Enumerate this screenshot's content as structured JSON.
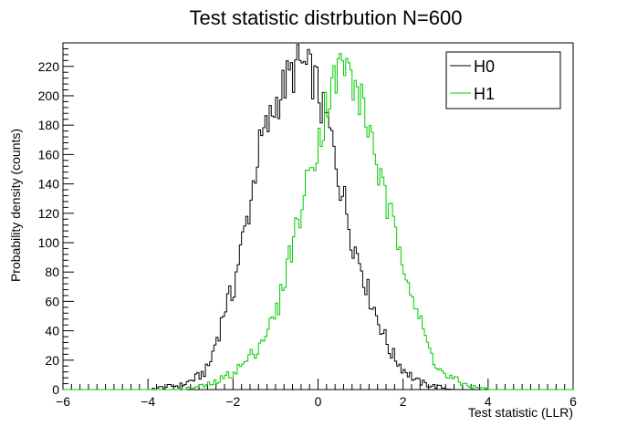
{
  "chart_data": {
    "type": "histogram",
    "title": "Test statistic distrbution N=600",
    "xlabel": "Test statistic (LLR)",
    "ylabel": "Probability density (counts)",
    "xlim": [
      -6,
      6
    ],
    "ylim": [
      0,
      236
    ],
    "xticks": [
      -6,
      -4,
      -2,
      0,
      2,
      4,
      6
    ],
    "yticks": [
      0,
      20,
      40,
      60,
      80,
      100,
      120,
      140,
      160,
      180,
      200,
      220
    ],
    "grid": false,
    "legend_position": "top-right",
    "bin_width": 0.05,
    "series": [
      {
        "name": "H0",
        "color": "#000000",
        "points": [
          [
            -6.0,
            0
          ],
          [
            -4.5,
            0
          ],
          [
            -4.0,
            0
          ],
          [
            -3.8,
            1
          ],
          [
            -3.5,
            2
          ],
          [
            -3.2,
            3
          ],
          [
            -3.0,
            6
          ],
          [
            -2.8,
            9
          ],
          [
            -2.6,
            14
          ],
          [
            -2.5,
            22
          ],
          [
            -2.4,
            34
          ],
          [
            -2.3,
            42
          ],
          [
            -2.2,
            56
          ],
          [
            -2.0,
            66
          ],
          [
            -1.9,
            84
          ],
          [
            -1.8,
            98
          ],
          [
            -1.7,
            112
          ],
          [
            -1.6,
            125
          ],
          [
            -1.5,
            145
          ],
          [
            -1.4,
            162
          ],
          [
            -1.3,
            172
          ],
          [
            -1.2,
            178
          ],
          [
            -1.1,
            185
          ],
          [
            -1.0,
            195
          ],
          [
            -0.9,
            200
          ],
          [
            -0.8,
            207
          ],
          [
            -0.7,
            212
          ],
          [
            -0.6,
            215
          ],
          [
            -0.5,
            220
          ],
          [
            -0.4,
            222
          ],
          [
            -0.3,
            218
          ],
          [
            -0.2,
            216
          ],
          [
            -0.1,
            212
          ],
          [
            0.0,
            205
          ],
          [
            0.1,
            188
          ],
          [
            0.2,
            185
          ],
          [
            0.3,
            172
          ],
          [
            0.4,
            160
          ],
          [
            0.5,
            142
          ],
          [
            0.6,
            132
          ],
          [
            0.7,
            118
          ],
          [
            0.8,
            102
          ],
          [
            0.9,
            94
          ],
          [
            1.0,
            87
          ],
          [
            1.1,
            75
          ],
          [
            1.2,
            64
          ],
          [
            1.3,
            58
          ],
          [
            1.4,
            48
          ],
          [
            1.5,
            42
          ],
          [
            1.6,
            33
          ],
          [
            1.7,
            26
          ],
          [
            1.8,
            22
          ],
          [
            1.9,
            18
          ],
          [
            2.0,
            14
          ],
          [
            2.1,
            12
          ],
          [
            2.2,
            9
          ],
          [
            2.3,
            6
          ],
          [
            2.4,
            5
          ],
          [
            2.5,
            4
          ],
          [
            2.6,
            3
          ],
          [
            2.8,
            2
          ],
          [
            3.0,
            1
          ],
          [
            3.3,
            0
          ],
          [
            6.0,
            0
          ]
        ]
      },
      {
        "name": "H1",
        "color": "#00cc00",
        "points": [
          [
            -6.0,
            0
          ],
          [
            -4.0,
            0
          ],
          [
            -3.5,
            0
          ],
          [
            -3.0,
            1
          ],
          [
            -2.8,
            2
          ],
          [
            -2.6,
            3
          ],
          [
            -2.4,
            5
          ],
          [
            -2.2,
            8
          ],
          [
            -2.0,
            12
          ],
          [
            -1.8,
            16
          ],
          [
            -1.6,
            22
          ],
          [
            -1.4,
            30
          ],
          [
            -1.2,
            40
          ],
          [
            -1.0,
            50
          ],
          [
            -0.9,
            60
          ],
          [
            -0.8,
            75
          ],
          [
            -0.7,
            88
          ],
          [
            -0.6,
            100
          ],
          [
            -0.5,
            112
          ],
          [
            -0.4,
            122
          ],
          [
            -0.3,
            135
          ],
          [
            -0.2,
            148
          ],
          [
            -0.1,
            160
          ],
          [
            0.0,
            170
          ],
          [
            0.1,
            178
          ],
          [
            0.2,
            196
          ],
          [
            0.3,
            205
          ],
          [
            0.4,
            210
          ],
          [
            0.5,
            218
          ],
          [
            0.6,
            224
          ],
          [
            0.7,
            216
          ],
          [
            0.8,
            210
          ],
          [
            0.9,
            204
          ],
          [
            1.0,
            197
          ],
          [
            1.1,
            188
          ],
          [
            1.2,
            176
          ],
          [
            1.3,
            170
          ],
          [
            1.4,
            152
          ],
          [
            1.5,
            137
          ],
          [
            1.6,
            126
          ],
          [
            1.7,
            118
          ],
          [
            1.8,
            108
          ],
          [
            1.9,
            100
          ],
          [
            2.0,
            92
          ],
          [
            2.1,
            80
          ],
          [
            2.2,
            68
          ],
          [
            2.3,
            56
          ],
          [
            2.4,
            46
          ],
          [
            2.5,
            38
          ],
          [
            2.6,
            28
          ],
          [
            2.7,
            22
          ],
          [
            2.8,
            17
          ],
          [
            2.9,
            12
          ],
          [
            3.0,
            9
          ],
          [
            3.2,
            7
          ],
          [
            3.4,
            4
          ],
          [
            3.6,
            2
          ],
          [
            3.8,
            1
          ],
          [
            4.2,
            0
          ],
          [
            6.0,
            0
          ]
        ]
      }
    ]
  }
}
